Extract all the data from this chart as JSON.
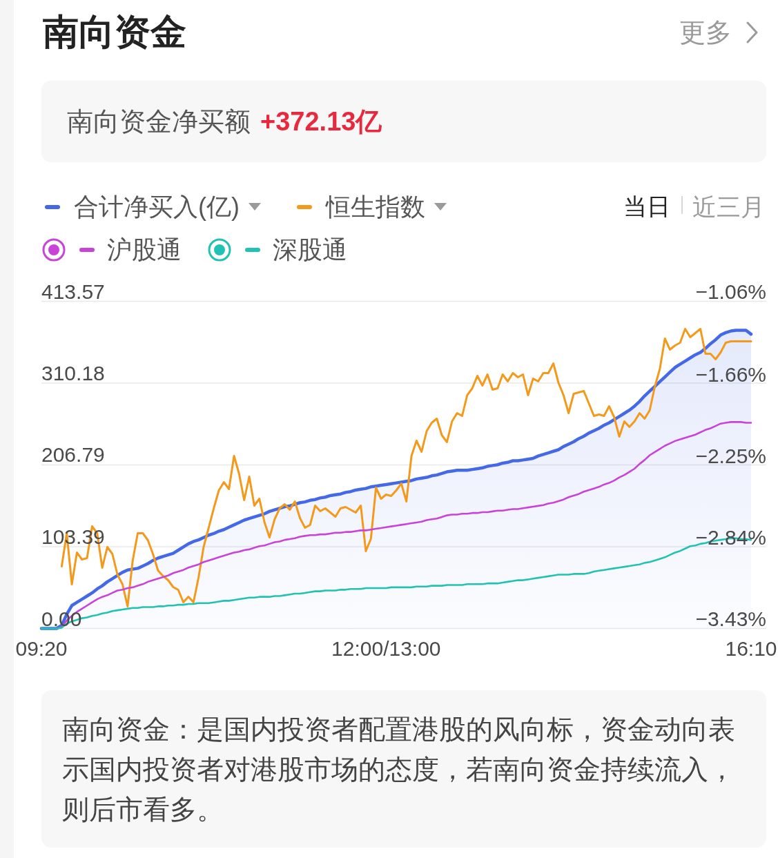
{
  "chart_data": {
    "type": "line",
    "title": "南向资金",
    "annotations": [
      "更多",
      "南向资金净买额",
      "+372.13亿",
      "当日",
      "近三月",
      "南向资金：是国内投资者配置港股的风向标，资金动向表示国内投资者对港股市场的态度，若南向资金持续流入，则后市看多。"
    ],
    "categories": [
      "09:20",
      null,
      null,
      null,
      null,
      null,
      null,
      null,
      null,
      null,
      null,
      null,
      null,
      null,
      null,
      null,
      null,
      null,
      null,
      null,
      null,
      null,
      null,
      null,
      null,
      null,
      null,
      null,
      null,
      null,
      null,
      null,
      null,
      null,
      null,
      null,
      null,
      null,
      null,
      null,
      null,
      null,
      null,
      null,
      null,
      null,
      null,
      null,
      null,
      null,
      null,
      null,
      null,
      null,
      null,
      null,
      null,
      null,
      null,
      null,
      null,
      null,
      null,
      null,
      null,
      null,
      null,
      null,
      "12:00/13:00",
      null,
      null,
      null,
      null,
      null,
      null,
      null,
      null,
      null,
      null,
      null,
      null,
      null,
      null,
      null,
      null,
      null,
      null,
      null,
      null,
      null,
      null,
      null,
      null,
      null,
      null,
      null,
      null,
      null,
      null,
      null,
      null,
      null,
      null,
      null,
      null,
      null,
      null,
      null,
      null,
      null,
      null,
      null,
      null,
      null,
      null,
      null,
      null,
      null,
      null,
      null,
      null,
      null,
      null,
      null,
      null,
      null,
      null,
      null,
      null,
      null,
      null,
      null,
      null,
      null,
      null,
      null,
      null,
      null,
      null,
      null,
      "16:10"
    ],
    "ylim": [
      0,
      413.57
    ],
    "yticks": [
      {
        "value": 0,
        "label": "0.00"
      },
      103.39,
      206.79,
      310.18,
      413.57
    ],
    "y2lim": [
      -3.43,
      -1.06
    ],
    "y2ticks": [
      {
        "value": -1.06,
        "label": "−1.06%"
      },
      {
        "value": -1.66,
        "label": "−1.66%"
      },
      {
        "value": -2.25,
        "label": "−2.25%"
      },
      {
        "value": -2.84,
        "label": "−2.84%"
      },
      {
        "value": -3.43,
        "label": "−3.43%"
      }
    ],
    "grid": "y",
    "legend": "top left",
    "series": [
      {
        "name": "合计净买入(亿)",
        "type": "area",
        "color": "#4469e8",
        "values": [
          0,
          0,
          0,
          0,
          4,
          18,
          29,
          33,
          37,
          41,
          45,
          50,
          54,
          59,
          63,
          67,
          71,
          74,
          75,
          76,
          79,
          82,
          86,
          89,
          91,
          93,
          95,
          99,
          103,
          107,
          110,
          112,
          115,
          118,
          120,
          123,
          125,
          128,
          131,
          134,
          137,
          139,
          141,
          143,
          145,
          148,
          150,
          152,
          154,
          155,
          157,
          159,
          160,
          162,
          163,
          165,
          166,
          168,
          169,
          170,
          172,
          173,
          175,
          176,
          177,
          179,
          180,
          181,
          182,
          183,
          184,
          185,
          186,
          187,
          189,
          190,
          191,
          193,
          194,
          196,
          198,
          199,
          200,
          200,
          200,
          201,
          202,
          203,
          205,
          206,
          207,
          209,
          210,
          212,
          212,
          213,
          214,
          215,
          218,
          220,
          222,
          224,
          226,
          230,
          233,
          236,
          240,
          243,
          247,
          250,
          253,
          257,
          260,
          264,
          268,
          272,
          276,
          281,
          287,
          294,
          300,
          306,
          312,
          318,
          324,
          330,
          334,
          338,
          342,
          346,
          349,
          354,
          360,
          365,
          371,
          374,
          376,
          377,
          377,
          377,
          372
        ]
      },
      {
        "name": "恒生指数",
        "color": "#f39a1c",
        "axis": "y2",
        "values": [
          null,
          null,
          null,
          null,
          -2.98,
          -2.74,
          -3.11,
          -2.88,
          -2.93,
          -2.92,
          -2.69,
          -2.74,
          -2.99,
          -2.84,
          -2.89,
          -3.04,
          -3.11,
          -3.27,
          -2.94,
          -2.74,
          -2.74,
          -2.79,
          -2.89,
          -3.01,
          -3.05,
          -3.08,
          -3.13,
          -3.15,
          -3.24,
          -3.2,
          -3.24,
          -3.06,
          -2.84,
          -2.7,
          -2.56,
          -2.43,
          -2.37,
          -2.42,
          -2.18,
          -2.31,
          -2.5,
          -2.33,
          -2.54,
          -2.49,
          -2.66,
          -2.77,
          -2.64,
          -2.56,
          -2.53,
          -2.57,
          -2.51,
          -2.63,
          -2.7,
          -2.68,
          -2.54,
          -2.58,
          -2.56,
          -2.59,
          -2.62,
          -2.56,
          -2.55,
          -2.57,
          -2.59,
          -2.54,
          -2.87,
          -2.78,
          -2.41,
          -2.49,
          -2.46,
          -2.47,
          -2.43,
          -2.38,
          -2.51,
          -2.18,
          -2.07,
          -2.15,
          -2.0,
          -1.94,
          -1.91,
          -2.03,
          -2.08,
          -1.93,
          -1.87,
          -1.89,
          -1.74,
          -1.69,
          -1.6,
          -1.67,
          -1.59,
          -1.7,
          -1.69,
          -1.59,
          -1.64,
          -1.58,
          -1.61,
          -1.59,
          -1.74,
          -1.62,
          -1.64,
          -1.58,
          -1.58,
          -1.51,
          -1.65,
          -1.74,
          -1.87,
          -1.73,
          -1.72,
          -1.71,
          -1.8,
          -1.89,
          -1.88,
          -1.89,
          -1.82,
          -1.9,
          -2.04,
          -1.93,
          -1.97,
          -1.93,
          -1.87,
          -1.91,
          -1.85,
          -1.68,
          -1.55,
          -1.33,
          -1.41,
          -1.38,
          -1.36,
          -1.26,
          -1.32,
          -1.29,
          -1.26,
          -1.44,
          -1.44,
          -1.48,
          -1.43,
          -1.36,
          -1.35,
          -1.35,
          -1.35,
          -1.35,
          -1.35
        ]
      },
      {
        "name": "沪股通",
        "color": "#c844d9",
        "values": [
          null,
          null,
          null,
          0,
          2,
          10,
          16,
          21,
          25,
          29,
          33,
          37,
          40,
          42,
          45,
          48,
          49,
          51,
          52,
          54,
          56,
          59,
          61,
          63,
          65,
          67,
          70,
          72,
          74,
          77,
          79,
          81,
          84,
          86,
          88,
          90,
          92,
          94,
          96,
          97,
          99,
          100,
          102,
          104,
          105,
          107,
          109,
          110,
          112,
          113,
          114,
          116,
          117,
          118,
          118,
          119,
          119,
          120,
          121,
          121,
          122,
          122,
          123,
          124,
          124,
          125,
          126,
          127,
          128,
          129,
          130,
          131,
          132,
          133,
          134,
          135,
          137,
          138,
          139,
          141,
          143,
          144,
          144,
          145,
          145,
          146,
          146,
          147,
          147,
          148,
          149,
          149,
          150,
          151,
          151,
          152,
          153,
          154,
          155,
          156,
          158,
          159,
          161,
          163,
          166,
          168,
          170,
          173,
          175,
          177,
          179,
          182,
          184,
          187,
          191,
          194,
          198,
          202,
          208,
          213,
          219,
          223,
          227,
          231,
          234,
          237,
          239,
          241,
          243,
          245,
          248,
          251,
          253,
          256,
          259,
          260,
          261,
          261,
          261,
          260,
          260
        ]
      },
      {
        "name": "深股通",
        "color": "#21c2b3",
        "values": [
          0,
          0,
          0,
          0,
          1,
          6,
          9,
          11,
          13,
          14,
          16,
          17,
          19,
          20,
          22,
          23,
          24,
          25,
          26,
          26,
          27,
          27,
          27,
          28,
          28,
          29,
          29,
          30,
          30,
          31,
          31,
          32,
          32,
          32,
          33,
          34,
          35,
          35,
          36,
          37,
          38,
          39,
          39,
          40,
          40,
          40,
          41,
          41,
          42,
          43,
          44,
          44,
          45,
          46,
          47,
          47,
          48,
          48,
          48,
          49,
          49,
          50,
          50,
          50,
          51,
          51,
          51,
          51,
          51,
          52,
          52,
          52,
          52,
          52,
          53,
          53,
          53,
          54,
          54,
          54,
          55,
          55,
          55,
          55,
          56,
          56,
          56,
          56,
          57,
          57,
          57,
          58,
          59,
          60,
          61,
          61,
          62,
          63,
          64,
          65,
          66,
          67,
          68,
          68,
          68,
          69,
          69,
          69,
          70,
          72,
          73,
          74,
          75,
          76,
          77,
          78,
          79,
          80,
          81,
          83,
          84,
          86,
          88,
          90,
          93,
          96,
          98,
          101,
          104,
          105,
          107,
          108,
          110,
          111,
          112,
          113,
          114,
          114,
          113,
          113,
          112
        ]
      }
    ]
  }
}
